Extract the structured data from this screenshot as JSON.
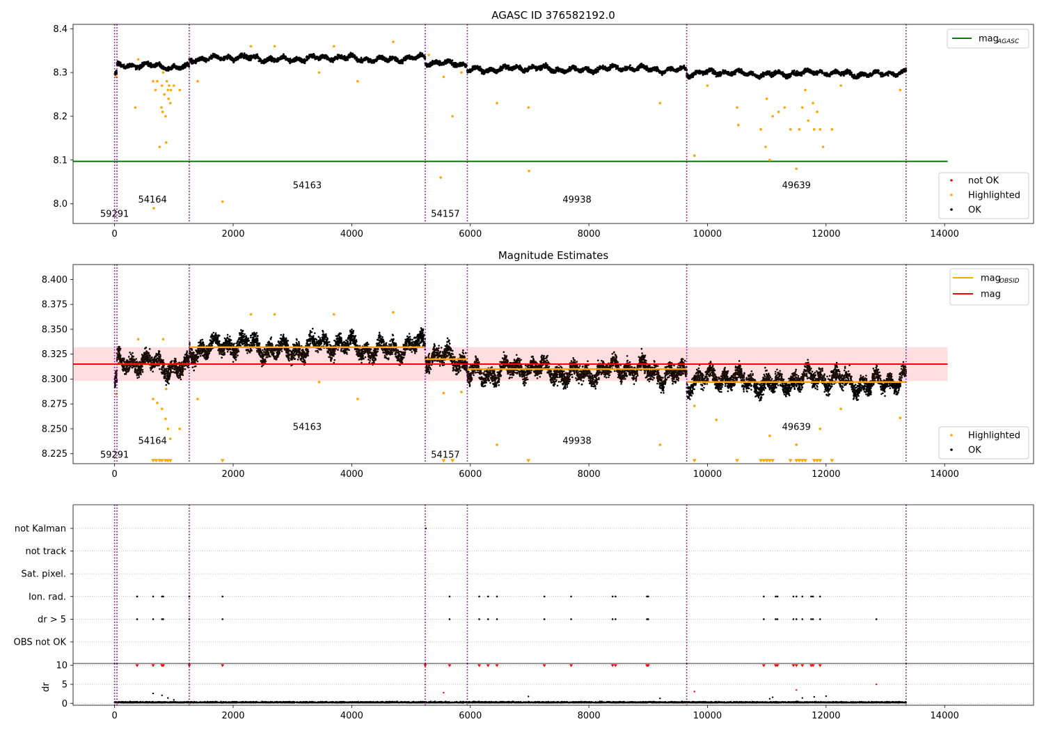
{
  "chart_data": [
    {
      "id": "top",
      "type": "scatter",
      "title": "AGASC ID 376582192.0",
      "xlim": [
        -700,
        15500
      ],
      "ylim": [
        7.955,
        8.41
      ],
      "xticks": [
        0,
        2000,
        4000,
        6000,
        8000,
        10000,
        12000,
        14000
      ],
      "yticks": [
        8.0,
        8.1,
        8.2,
        8.3,
        8.4
      ],
      "ytick_labels": [
        "8.0",
        "8.1",
        "8.2",
        "8.3",
        "8.4"
      ],
      "vlines": [
        0,
        40,
        1260,
        5240,
        5950,
        9650,
        13350
      ],
      "obs_labels": [
        {
          "text": "59291",
          "x": 0,
          "y": 7.97
        },
        {
          "text": "54164",
          "x": 640,
          "y": 8.003
        },
        {
          "text": "54163",
          "x": 3250,
          "y": 8.035
        },
        {
          "text": "54157",
          "x": 5580,
          "y": 7.97
        },
        {
          "text": "49938",
          "x": 7800,
          "y": 8.003
        },
        {
          "text": "49639",
          "x": 11500,
          "y": 8.035
        }
      ],
      "hline": {
        "y": 8.097,
        "x": [
          -700,
          14050
        ],
        "color": "#008000",
        "name": "mag",
        "sub": "AGASC"
      },
      "segments": [
        {
          "x": [
            0,
            40
          ],
          "mean": 8.297
        },
        {
          "x": [
            40,
            1260
          ],
          "mean": 8.314
        },
        {
          "x": [
            1260,
            5240
          ],
          "mean": 8.332
        },
        {
          "x": [
            5240,
            5950
          ],
          "mean": 8.32
        },
        {
          "x": [
            5950,
            9650
          ],
          "mean": 8.308
        },
        {
          "x": [
            9650,
            13350
          ],
          "mean": 8.298
        }
      ],
      "highlighted": [
        [
          30,
          8.29
        ],
        [
          350,
          8.22
        ],
        [
          400,
          8.33
        ],
        [
          650,
          8.28
        ],
        [
          660,
          7.99
        ],
        [
          690,
          8.26
        ],
        [
          720,
          8.28
        ],
        [
          760,
          8.13
        ],
        [
          790,
          8.22
        ],
        [
          800,
          8.27
        ],
        [
          810,
          8.21
        ],
        [
          820,
          8.3
        ],
        [
          840,
          8.25
        ],
        [
          860,
          8.2
        ],
        [
          870,
          8.14
        ],
        [
          880,
          8.28
        ],
        [
          900,
          8.26
        ],
        [
          910,
          8.24
        ],
        [
          920,
          8.27
        ],
        [
          940,
          8.23
        ],
        [
          950,
          8.26
        ],
        [
          1000,
          8.27
        ],
        [
          1100,
          8.26
        ],
        [
          1400,
          8.28
        ],
        [
          1820,
          8.005
        ],
        [
          2300,
          8.36
        ],
        [
          2700,
          8.36
        ],
        [
          3450,
          8.3
        ],
        [
          3700,
          8.36
        ],
        [
          4100,
          8.28
        ],
        [
          4700,
          8.37
        ],
        [
          5300,
          8.34
        ],
        [
          5500,
          8.06
        ],
        [
          5550,
          8.29
        ],
        [
          5700,
          8.2
        ],
        [
          5850,
          8.3
        ],
        [
          6450,
          8.23
        ],
        [
          6980,
          8.22
        ],
        [
          6990,
          8.075
        ],
        [
          9200,
          8.23
        ],
        [
          9780,
          8.11
        ],
        [
          10000,
          8.27
        ],
        [
          10500,
          8.22
        ],
        [
          10520,
          8.18
        ],
        [
          10900,
          8.17
        ],
        [
          10980,
          8.13
        ],
        [
          11050,
          8.1
        ],
        [
          11000,
          8.24
        ],
        [
          11100,
          8.2
        ],
        [
          11200,
          8.21
        ],
        [
          11300,
          8.22
        ],
        [
          11400,
          8.17
        ],
        [
          11500,
          8.08
        ],
        [
          11550,
          8.17
        ],
        [
          11600,
          8.22
        ],
        [
          11650,
          8.26
        ],
        [
          11700,
          8.19
        ],
        [
          11780,
          8.23
        ],
        [
          11800,
          8.17
        ],
        [
          11850,
          8.21
        ],
        [
          11900,
          8.17
        ],
        [
          11950,
          8.13
        ],
        [
          12100,
          8.17
        ],
        [
          12250,
          8.27
        ],
        [
          13250,
          8.26
        ]
      ],
      "legend_upper": [
        {
          "label": "mag",
          "sub": "AGASC",
          "color": "#008000",
          "kind": "line"
        }
      ],
      "legend_lower": [
        {
          "label": "not OK",
          "color": "#ff0000",
          "kind": "dot"
        },
        {
          "label": "Highlighted",
          "color": "#ffa500",
          "kind": "dot"
        },
        {
          "label": "OK",
          "color": "#000000",
          "kind": "dot"
        }
      ]
    },
    {
      "id": "mid",
      "type": "scatter",
      "title": "Magnitude Estimates",
      "xlim": [
        -700,
        15500
      ],
      "ylim": [
        8.215,
        8.415
      ],
      "xticks": [
        0,
        2000,
        4000,
        6000,
        8000,
        10000,
        12000,
        14000
      ],
      "yticks": [
        8.225,
        8.25,
        8.275,
        8.3,
        8.325,
        8.35,
        8.375,
        8.4
      ],
      "ytick_labels": [
        "8.225",
        "8.250",
        "8.275",
        "8.300",
        "8.325",
        "8.350",
        "8.375",
        "8.400"
      ],
      "vlines": [
        0,
        40,
        1260,
        5240,
        5950,
        9650,
        13350
      ],
      "obs_labels": [
        {
          "text": "59291",
          "x": 0,
          "y": 8.221
        },
        {
          "text": "54164",
          "x": 640,
          "y": 8.235
        },
        {
          "text": "54163",
          "x": 3250,
          "y": 8.249
        },
        {
          "text": "54157",
          "x": 5580,
          "y": 8.221
        },
        {
          "text": "49938",
          "x": 7800,
          "y": 8.235
        },
        {
          "text": "49639",
          "x": 11500,
          "y": 8.249
        }
      ],
      "mag": {
        "value": 8.315,
        "band": [
          8.298,
          8.332
        ],
        "x": [
          -700,
          14050
        ],
        "color": "#ff0000",
        "band_color": "#ffb6bf"
      },
      "segments": [
        {
          "x": [
            0,
            40
          ],
          "mean": 8.297
        },
        {
          "x": [
            40,
            1260
          ],
          "mean": 8.314
        },
        {
          "x": [
            1260,
            5240
          ],
          "mean": 8.332
        },
        {
          "x": [
            5240,
            5950
          ],
          "mean": 8.32
        },
        {
          "x": [
            5950,
            9650
          ],
          "mean": 8.308
        },
        {
          "x": [
            9650,
            13350
          ],
          "mean": 8.298
        }
      ],
      "obs_means": [
        {
          "x": [
            40,
            1260
          ],
          "y": 8.315
        },
        {
          "x": [
            1260,
            5240
          ],
          "y": 8.332
        },
        {
          "x": [
            5240,
            5950
          ],
          "y": 8.32
        },
        {
          "x": [
            5950,
            9650
          ],
          "y": 8.31
        },
        {
          "x": [
            9650,
            13350
          ],
          "y": 8.297
        }
      ],
      "highlighted": [
        [
          30,
          8.285
        ],
        [
          400,
          8.34
        ],
        [
          650,
          8.28
        ],
        [
          720,
          8.276
        ],
        [
          800,
          8.27
        ],
        [
          820,
          8.34
        ],
        [
          860,
          8.26
        ],
        [
          870,
          8.29
        ],
        [
          900,
          8.25
        ],
        [
          940,
          8.24
        ],
        [
          1100,
          8.25
        ],
        [
          1400,
          8.28
        ],
        [
          2300,
          8.365
        ],
        [
          2700,
          8.365
        ],
        [
          3450,
          8.297
        ],
        [
          3700,
          8.365
        ],
        [
          4100,
          8.28
        ],
        [
          4700,
          8.367
        ],
        [
          5550,
          8.286
        ],
        [
          5850,
          8.287
        ],
        [
          6450,
          8.234
        ],
        [
          9200,
          8.234
        ],
        [
          9780,
          8.273
        ],
        [
          10150,
          8.259
        ],
        [
          11050,
          8.243
        ],
        [
          11500,
          8.234
        ],
        [
          11900,
          8.25
        ],
        [
          12250,
          8.27
        ],
        [
          13250,
          8.261
        ]
      ],
      "offscale": [
        650,
        700,
        760,
        800,
        860,
        900,
        940,
        1820,
        5550,
        5700,
        6980,
        9780,
        10500,
        10900,
        10950,
        11000,
        11050,
        11100,
        11400,
        11500,
        11550,
        11600,
        11650,
        11800,
        11850,
        11900,
        12100
      ],
      "legend_upper": [
        {
          "label": "mag",
          "sub": "OBSID",
          "color": "#ffa500",
          "kind": "line"
        },
        {
          "label": "mag",
          "sub": "",
          "color": "#ff0000",
          "kind": "line"
        }
      ],
      "legend_lower": [
        {
          "label": "Highlighted",
          "color": "#ffa500",
          "kind": "dot"
        },
        {
          "label": "OK",
          "color": "#000000",
          "kind": "dot"
        }
      ]
    },
    {
      "id": "flags",
      "type": "scatter",
      "xlim": [
        -700,
        15500
      ],
      "categories": [
        "not Kalman",
        "not track",
        "Sat. pixel.",
        "Ion. rad.",
        "dr > 5",
        "OBS not OK"
      ],
      "vlines": [
        0,
        40,
        1260,
        5240,
        5950,
        9650,
        13350
      ],
      "events": [
        {
          "category": "not Kalman",
          "x": [
            5250
          ]
        },
        {
          "category": "Ion. rad.",
          "x": [
            380,
            650,
            800,
            820,
            1260,
            1820,
            5650,
            6150,
            6300,
            6450,
            7250,
            7700,
            8400,
            8450,
            8980,
            9000,
            10950,
            11150,
            11180,
            11450,
            11500,
            11600,
            11750,
            11780,
            11900
          ]
        },
        {
          "category": "dr > 5",
          "x": [
            380,
            650,
            800,
            820,
            1260,
            1820,
            5650,
            6150,
            6300,
            6450,
            7250,
            7700,
            8400,
            8450,
            8980,
            9000,
            10950,
            11150,
            11180,
            11450,
            11500,
            11600,
            11750,
            11780,
            11900,
            12850
          ]
        }
      ]
    },
    {
      "id": "dr",
      "type": "scatter",
      "ylabel": "dr",
      "xlim": [
        -700,
        15500
      ],
      "ylim": [
        -0.5,
        10.5
      ],
      "xticks": [
        0,
        2000,
        4000,
        6000,
        8000,
        10000,
        12000,
        14000
      ],
      "yticks": [
        0,
        5,
        10
      ],
      "ytick_labels": [
        "0",
        "5",
        "10"
      ],
      "vlines": [
        0,
        40,
        1260,
        5240,
        5950,
        9650,
        13350
      ],
      "clipped_red_x": [
        380,
        650,
        800,
        820,
        1260,
        1820,
        5240,
        5650,
        6150,
        6300,
        6450,
        7250,
        7700,
        8400,
        8450,
        8980,
        9000,
        10950,
        11150,
        11180,
        11450,
        11500,
        11600,
        11750,
        11780,
        11900
      ],
      "red_points": [
        [
          5550,
          2.8
        ],
        [
          9780,
          3.1
        ],
        [
          11500,
          3.5
        ],
        [
          12850,
          5.0
        ]
      ],
      "black_points": [
        [
          650,
          2.6
        ],
        [
          800,
          2.1
        ],
        [
          900,
          1.4
        ],
        [
          1000,
          0.9
        ],
        [
          6980,
          1.8
        ],
        [
          9200,
          1.3
        ],
        [
          11050,
          1.2
        ],
        [
          11100,
          1.6
        ],
        [
          11600,
          1.4
        ],
        [
          11800,
          1.7
        ],
        [
          12000,
          1.9
        ]
      ]
    }
  ]
}
